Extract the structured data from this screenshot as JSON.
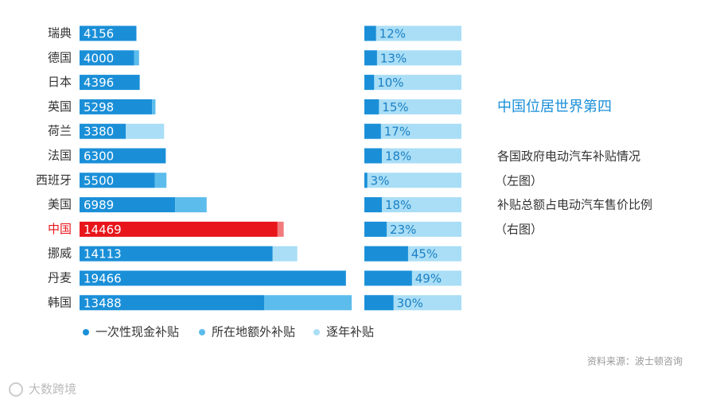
{
  "chart_data": [
    {
      "type": "stacked-bar",
      "orientation": "horizontal",
      "categories": [
        "瑞典",
        "德国",
        "日本",
        "英国",
        "荷兰",
        "法国",
        "西班牙",
        "美国",
        "中国",
        "挪威",
        "丹麦",
        "韩国"
      ],
      "series": [
        {
          "name": "一次性现金补贴",
          "color": "#1a8fd8",
          "values": [
            4156,
            4000,
            4396,
            5298,
            3380,
            6300,
            5500,
            6989,
            14469,
            14113,
            19466,
            13488
          ]
        },
        {
          "name": "所在地额外补贴",
          "color": "#5cbcec",
          "values": [
            0,
            350,
            0,
            250,
            0,
            0,
            850,
            2300,
            450,
            0,
            0,
            6400
          ]
        },
        {
          "name": "逐年补贴",
          "color": "#a9def6",
          "values": [
            0,
            0,
            0,
            0,
            2800,
            0,
            0,
            0,
            0,
            1800,
            0,
            0
          ]
        }
      ],
      "highlight": {
        "index": 8,
        "colors": [
          "#e8151b",
          "#f27a7c",
          "#f6b0b1"
        ]
      },
      "xlim": [
        0,
        20000
      ]
    },
    {
      "type": "bar",
      "orientation": "horizontal",
      "values": [
        12,
        13,
        10,
        15,
        17,
        18,
        3,
        18,
        23,
        45,
        49,
        30
      ],
      "value_labels": [
        "12%",
        "13%",
        "10%",
        "15%",
        "17%",
        "18%",
        "3%",
        "18%",
        "23%",
        "45%",
        "49%",
        "30%"
      ],
      "color": "#1a8fd8",
      "background_color": "#a9def6",
      "xlim": [
        0,
        100
      ]
    }
  ],
  "annotations": {
    "headline": "中国位居世界第四",
    "left_note": "各国政府电动汽车补贴情况",
    "left_tag": "（左图）",
    "right_note": "补贴总额占电动汽车售价比例",
    "right_tag": "（右图）"
  },
  "source": "资料来源：波士顿咨询",
  "watermark": "大数跨境"
}
